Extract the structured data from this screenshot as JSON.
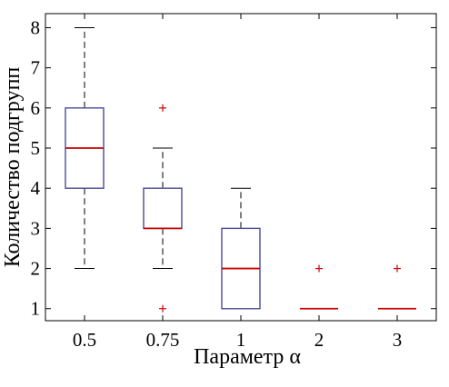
{
  "chart_data": {
    "type": "boxplot",
    "title": "",
    "xlabel": "Параметр α",
    "ylabel": "Количество подгрупп",
    "categories": [
      "0.5",
      "0.75",
      "1",
      "2",
      "3"
    ],
    "ylim": [
      0.7,
      8.35
    ],
    "yticks": [
      1,
      2,
      3,
      4,
      5,
      6,
      7,
      8
    ],
    "grid": false,
    "boxes": [
      {
        "category": "0.5",
        "whisker_low": 2,
        "q1": 4,
        "median": 5,
        "q3": 6,
        "whisker_high": 8,
        "outliers": []
      },
      {
        "category": "0.75",
        "whisker_low": 2,
        "q1": 3,
        "median": 3,
        "q3": 4,
        "whisker_high": 5,
        "outliers": [
          1,
          6
        ]
      },
      {
        "category": "1",
        "whisker_low": 1,
        "q1": 1,
        "median": 2,
        "q3": 3,
        "whisker_high": 4,
        "outliers": []
      },
      {
        "category": "2",
        "whisker_low": 1,
        "q1": 1,
        "median": 1,
        "q3": 1,
        "whisker_high": 1,
        "outliers": [
          2
        ]
      },
      {
        "category": "3",
        "whisker_low": 1,
        "q1": 1,
        "median": 1,
        "q3": 1,
        "whisker_high": 1,
        "outliers": [
          2
        ]
      }
    ],
    "colors": {
      "box": "#4b4b9b",
      "median": "#cc0000",
      "whisker": "#000000",
      "outlier": "#cc0000"
    }
  }
}
